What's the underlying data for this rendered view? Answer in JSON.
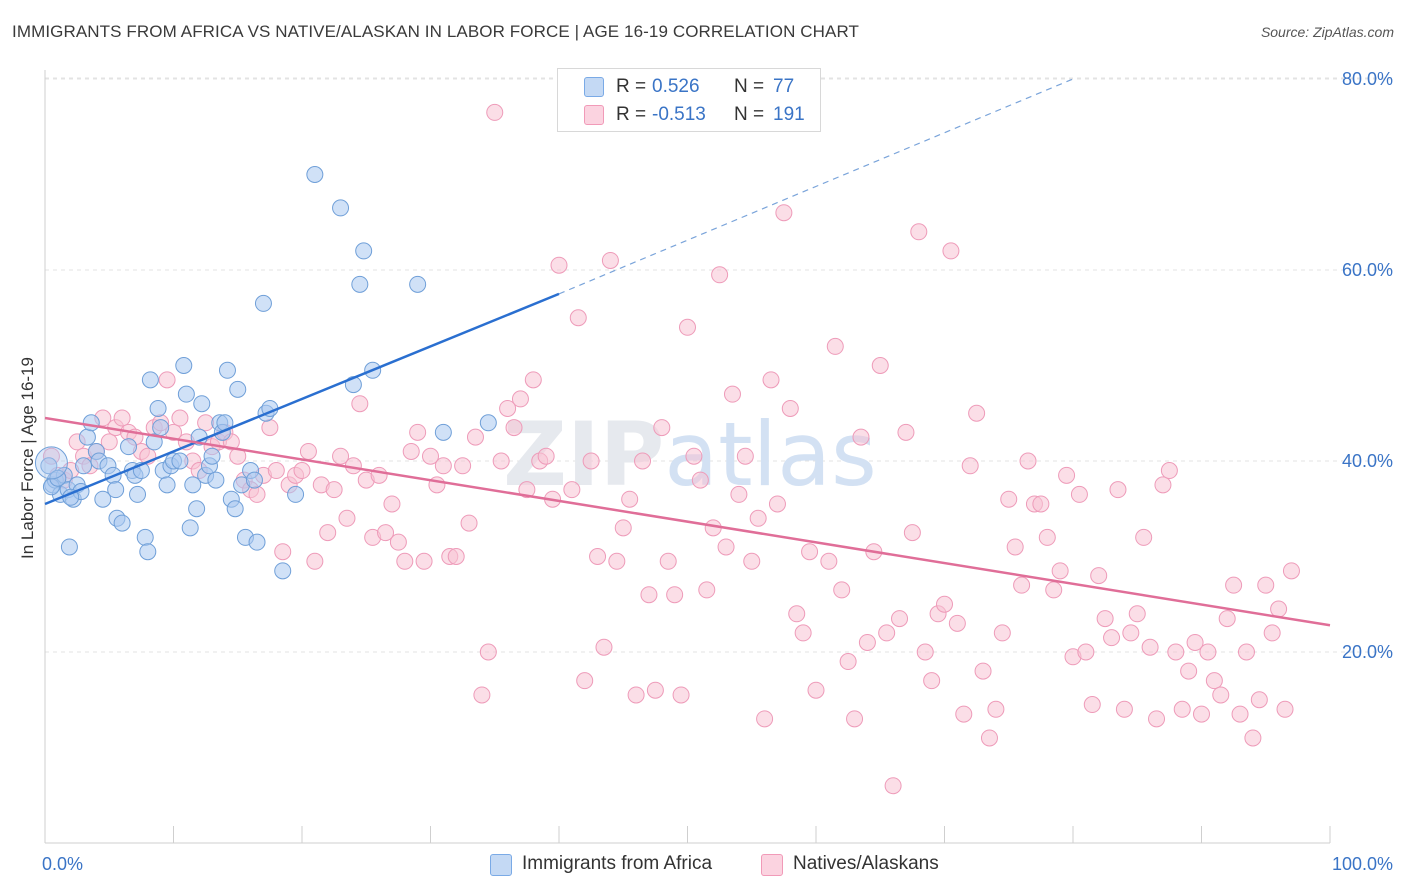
{
  "title": "IMMIGRANTS FROM AFRICA VS NATIVE/ALASKAN IN LABOR FORCE | AGE 16-19 CORRELATION CHART",
  "source": "Source: ZipAtlas.com",
  "watermark": "ZIPatlas",
  "legend": {
    "r_label": "R =",
    "n_label": "N =",
    "rows": [
      {
        "r": "0.526",
        "n": "77",
        "color": "#7aaae6"
      },
      {
        "r": "-0.513",
        "n": "191",
        "color": "#f19ab8"
      }
    ]
  },
  "colors": {
    "blue_fill": "#a9c8f0",
    "blue_stroke": "#6f9fd8",
    "blue_line": "#2a6fd0",
    "pink_fill": "#f7c3d4",
    "pink_stroke": "#ee9bb9",
    "pink_line": "#e06e98",
    "tick_text": "#3a74c6"
  },
  "chart_data": {
    "type": "scatter",
    "title": "IMMIGRANTS FROM AFRICA VS NATIVE/ALASKAN IN LABOR FORCE | AGE 16-19 CORRELATION CHART",
    "xlabel": "",
    "ylabel": "In Labor Force | Age 16-19",
    "xlim": [
      0,
      100
    ],
    "ylim": [
      0,
      82
    ],
    "x_tick_labels": [
      "0.0%",
      "100.0%"
    ],
    "y_ticks": [
      20,
      40,
      60,
      80
    ],
    "y_tick_labels": [
      "20.0%",
      "40.0%",
      "60.0%",
      "80.0%"
    ],
    "grid": true,
    "legend_position": "bottom",
    "series": [
      {
        "name": "Immigrants from Africa",
        "r": 0.526,
        "n": 77,
        "trend": {
          "x0": 0,
          "y0": 35.5,
          "x1": 40,
          "y1": 57.5,
          "dashed_to_x": 80,
          "dashed_to_y": 80
        },
        "points": [
          [
            0.3,
            39.5
          ],
          [
            0.6,
            37.5
          ],
          [
            0.8,
            38
          ],
          [
            1.2,
            36.5
          ],
          [
            1.5,
            38.5
          ],
          [
            1.8,
            37
          ],
          [
            1.9,
            31
          ],
          [
            2.2,
            36
          ],
          [
            2.5,
            37.5
          ],
          [
            2.8,
            36.8
          ],
          [
            3,
            39.5
          ],
          [
            3.3,
            42.5
          ],
          [
            3.6,
            44
          ],
          [
            4,
            41
          ],
          [
            4.2,
            40
          ],
          [
            4.5,
            36
          ],
          [
            4.9,
            39.5
          ],
          [
            5.3,
            38.5
          ],
          [
            5.5,
            37
          ],
          [
            5.6,
            34
          ],
          [
            6,
            33.5
          ],
          [
            6.5,
            41.5
          ],
          [
            6.8,
            39
          ],
          [
            7,
            38.5
          ],
          [
            7.2,
            36.5
          ],
          [
            7.5,
            39
          ],
          [
            7.8,
            32
          ],
          [
            8,
            30.5
          ],
          [
            8.2,
            48.5
          ],
          [
            8.5,
            42
          ],
          [
            8.8,
            45.5
          ],
          [
            9,
            43.5
          ],
          [
            9.2,
            39
          ],
          [
            9.5,
            37.5
          ],
          [
            9.8,
            39.5
          ],
          [
            10,
            40
          ],
          [
            10.5,
            40
          ],
          [
            10.8,
            50
          ],
          [
            11,
            47
          ],
          [
            11.3,
            33
          ],
          [
            11.5,
            37.5
          ],
          [
            11.8,
            35
          ],
          [
            12,
            42.5
          ],
          [
            12.2,
            46
          ],
          [
            12.5,
            38.5
          ],
          [
            12.8,
            39.5
          ],
          [
            13,
            40.5
          ],
          [
            13.3,
            38
          ],
          [
            13.6,
            44
          ],
          [
            13.8,
            43
          ],
          [
            14,
            44
          ],
          [
            14.2,
            49.5
          ],
          [
            14.5,
            36
          ],
          [
            14.8,
            35
          ],
          [
            15,
            47.5
          ],
          [
            15.3,
            37.5
          ],
          [
            15.6,
            32
          ],
          [
            16,
            39
          ],
          [
            16.3,
            38
          ],
          [
            16.5,
            31.5
          ],
          [
            17,
            56.5
          ],
          [
            17.2,
            45
          ],
          [
            17.5,
            45.5
          ],
          [
            18.5,
            28.5
          ],
          [
            19.5,
            36.5
          ],
          [
            21,
            70
          ],
          [
            23,
            66.5
          ],
          [
            24,
            48
          ],
          [
            24.5,
            58.5
          ],
          [
            24.8,
            62
          ],
          [
            25.5,
            49.5
          ],
          [
            29,
            58.5
          ],
          [
            31,
            43
          ],
          [
            34.5,
            44
          ],
          [
            0.5,
            37.3
          ],
          [
            1,
            38.2
          ],
          [
            2,
            36.2
          ]
        ]
      },
      {
        "name": "Natives/Alaskans",
        "r": -0.513,
        "n": 191,
        "trend": {
          "x0": 0,
          "y0": 44.5,
          "x1": 100,
          "y1": 22.8
        },
        "points": [
          [
            0.5,
            40.5
          ],
          [
            1,
            38.5
          ],
          [
            1.5,
            38
          ],
          [
            2,
            39
          ],
          [
            2.5,
            42
          ],
          [
            3,
            40.5
          ],
          [
            3.5,
            39.5
          ],
          [
            4,
            41
          ],
          [
            4.5,
            44.5
          ],
          [
            5,
            42
          ],
          [
            5.5,
            43.5
          ],
          [
            6,
            44.5
          ],
          [
            6.5,
            43
          ],
          [
            7,
            42.5
          ],
          [
            7.5,
            41
          ],
          [
            8,
            40.5
          ],
          [
            8.5,
            43.5
          ],
          [
            9,
            44
          ],
          [
            9.5,
            48.5
          ],
          [
            10,
            43
          ],
          [
            10.5,
            44.5
          ],
          [
            11,
            42
          ],
          [
            11.5,
            40
          ],
          [
            12,
            39
          ],
          [
            12.5,
            44
          ],
          [
            13,
            41.5
          ],
          [
            13.5,
            42
          ],
          [
            14,
            43
          ],
          [
            14.5,
            42
          ],
          [
            15,
            40.5
          ],
          [
            15.5,
            38
          ],
          [
            16,
            37
          ],
          [
            16.5,
            36.5
          ],
          [
            17,
            38.5
          ],
          [
            17.5,
            43.5
          ],
          [
            18,
            39
          ],
          [
            18.5,
            30.5
          ],
          [
            19,
            37.5
          ],
          [
            19.5,
            38.5
          ],
          [
            20,
            39
          ],
          [
            20.5,
            41
          ],
          [
            21,
            29.5
          ],
          [
            21.5,
            37.5
          ],
          [
            22,
            32.5
          ],
          [
            22.5,
            37
          ],
          [
            23,
            40.5
          ],
          [
            23.5,
            34
          ],
          [
            24,
            39.5
          ],
          [
            24.5,
            46
          ],
          [
            25,
            38
          ],
          [
            25.5,
            32
          ],
          [
            26,
            38.5
          ],
          [
            26.5,
            32.5
          ],
          [
            27,
            35.5
          ],
          [
            27.5,
            31.5
          ],
          [
            28,
            29.5
          ],
          [
            28.5,
            41
          ],
          [
            29,
            43
          ],
          [
            29.5,
            29.5
          ],
          [
            30,
            40.5
          ],
          [
            30.5,
            37.5
          ],
          [
            31,
            39.5
          ],
          [
            31.5,
            30
          ],
          [
            32,
            30
          ],
          [
            32.5,
            39.5
          ],
          [
            33,
            33.5
          ],
          [
            33.5,
            42.5
          ],
          [
            34,
            15.5
          ],
          [
            34.5,
            20
          ],
          [
            35,
            76.5
          ],
          [
            35.5,
            40
          ],
          [
            36,
            45.5
          ],
          [
            36.5,
            43.5
          ],
          [
            37,
            46.5
          ],
          [
            37.5,
            37
          ],
          [
            38,
            48.5
          ],
          [
            38.5,
            40
          ],
          [
            39,
            40.5
          ],
          [
            39.5,
            36
          ],
          [
            40,
            60.5
          ],
          [
            41,
            37
          ],
          [
            41.5,
            55
          ],
          [
            42,
            17
          ],
          [
            42.5,
            40
          ],
          [
            43,
            30
          ],
          [
            43.5,
            20.5
          ],
          [
            44,
            61
          ],
          [
            44.5,
            29.5
          ],
          [
            45,
            33
          ],
          [
            45.5,
            36
          ],
          [
            46,
            15.5
          ],
          [
            46.5,
            40
          ],
          [
            47,
            26
          ],
          [
            47.5,
            16
          ],
          [
            48,
            43.5
          ],
          [
            48.5,
            29.5
          ],
          [
            49,
            26
          ],
          [
            49.5,
            15.5
          ],
          [
            50,
            54
          ],
          [
            50.5,
            40.5
          ],
          [
            51,
            38
          ],
          [
            51.5,
            26.5
          ],
          [
            52,
            33
          ],
          [
            52.5,
            59.5
          ],
          [
            53,
            31
          ],
          [
            53.5,
            47
          ],
          [
            54,
            36.5
          ],
          [
            54.5,
            40.5
          ],
          [
            55,
            29.5
          ],
          [
            55.5,
            34
          ],
          [
            56,
            13
          ],
          [
            56.5,
            48.5
          ],
          [
            57,
            35.5
          ],
          [
            57.5,
            66
          ],
          [
            58,
            45.5
          ],
          [
            58.5,
            24
          ],
          [
            59,
            22
          ],
          [
            59.5,
            30.5
          ],
          [
            60,
            16
          ],
          [
            61,
            29.5
          ],
          [
            61.5,
            52
          ],
          [
            62,
            26.5
          ],
          [
            62.5,
            19
          ],
          [
            63,
            13
          ],
          [
            63.5,
            42.5
          ],
          [
            64,
            21
          ],
          [
            64.5,
            30.5
          ],
          [
            65,
            50
          ],
          [
            65.5,
            22
          ],
          [
            66,
            6
          ],
          [
            66.5,
            23.5
          ],
          [
            67,
            43
          ],
          [
            67.5,
            32.5
          ],
          [
            68,
            64
          ],
          [
            68.5,
            20
          ],
          [
            69,
            17
          ],
          [
            69.5,
            24
          ],
          [
            70,
            25
          ],
          [
            70.5,
            62
          ],
          [
            71,
            23
          ],
          [
            71.5,
            13.5
          ],
          [
            72,
            39.5
          ],
          [
            72.5,
            45
          ],
          [
            73,
            18
          ],
          [
            73.5,
            11
          ],
          [
            74,
            14
          ],
          [
            74.5,
            22
          ],
          [
            75,
            36
          ],
          [
            75.5,
            31
          ],
          [
            76,
            27
          ],
          [
            76.5,
            40
          ],
          [
            77,
            35.5
          ],
          [
            77.5,
            35.5
          ],
          [
            78,
            32
          ],
          [
            78.5,
            26.5
          ],
          [
            79,
            28.5
          ],
          [
            79.5,
            38.5
          ],
          [
            80,
            19.5
          ],
          [
            80.5,
            36.5
          ],
          [
            81,
            20
          ],
          [
            81.5,
            14.5
          ],
          [
            82,
            28
          ],
          [
            82.5,
            23.5
          ],
          [
            83,
            21.5
          ],
          [
            83.5,
            37
          ],
          [
            84,
            14
          ],
          [
            84.5,
            22
          ],
          [
            85,
            24
          ],
          [
            85.5,
            32
          ],
          [
            86,
            20.5
          ],
          [
            86.5,
            13
          ],
          [
            87,
            37.5
          ],
          [
            87.5,
            39
          ],
          [
            88,
            20
          ],
          [
            88.5,
            14
          ],
          [
            89,
            18
          ],
          [
            89.5,
            21
          ],
          [
            90,
            13.5
          ],
          [
            90.5,
            20
          ],
          [
            91,
            17
          ],
          [
            91.5,
            15.5
          ],
          [
            92,
            23.5
          ],
          [
            92.5,
            27
          ],
          [
            93,
            13.5
          ],
          [
            93.5,
            20
          ],
          [
            94,
            11
          ],
          [
            94.5,
            15
          ],
          [
            95,
            27
          ],
          [
            95.5,
            22
          ],
          [
            96,
            24.5
          ],
          [
            96.5,
            14
          ],
          [
            97,
            28.5
          ]
        ]
      }
    ]
  }
}
